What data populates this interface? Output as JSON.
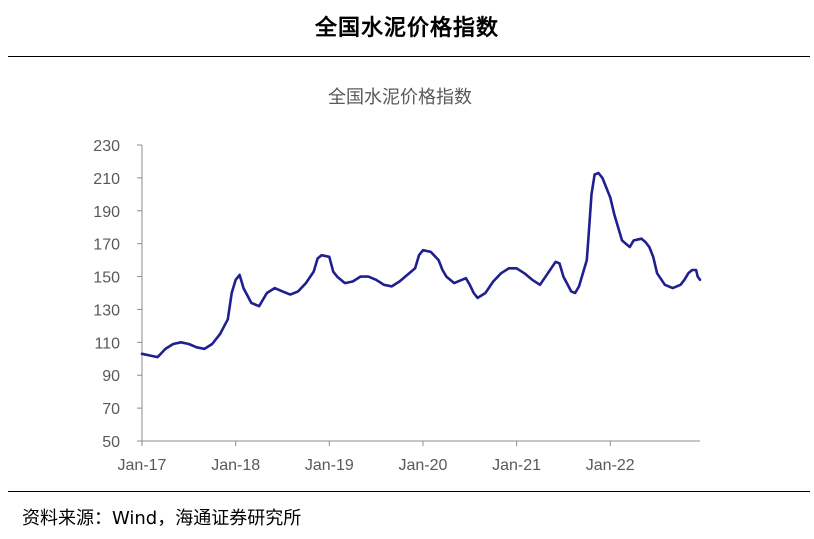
{
  "header": {
    "title": "全国水泥价格指数"
  },
  "footer": {
    "source": "资料来源：Wind，海通证券研究所"
  },
  "colors": {
    "series": "#1f1f8f",
    "axis": "#8c8c8c",
    "text": "#595959"
  },
  "chart_data": {
    "type": "line",
    "title": "全国水泥价格指数",
    "xlabel": "",
    "ylabel": "",
    "xlim": [
      0,
      71.5
    ],
    "ylim": [
      50,
      230
    ],
    "yticks": [
      50,
      70,
      90,
      110,
      130,
      150,
      170,
      190,
      210,
      230
    ],
    "xticks": [
      {
        "label": "Jan-17",
        "at": 0
      },
      {
        "label": "Jan-18",
        "at": 12
      },
      {
        "label": "Jan-19",
        "at": 24
      },
      {
        "label": "Jan-20",
        "at": 36
      },
      {
        "label": "Jan-21",
        "at": 48
      },
      {
        "label": "Jan-22",
        "at": 60
      }
    ],
    "grid": false,
    "legend": "none",
    "series": [
      {
        "values": [
          [
            0,
            103
          ],
          [
            1,
            102
          ],
          [
            2,
            101
          ],
          [
            3,
            106
          ],
          [
            4,
            109
          ],
          [
            5,
            110
          ],
          [
            6,
            109
          ],
          [
            7,
            107
          ],
          [
            8,
            106
          ],
          [
            9,
            109
          ],
          [
            10,
            115
          ],
          [
            11,
            124
          ],
          [
            11.5,
            140
          ],
          [
            12,
            148
          ],
          [
            12.5,
            151
          ],
          [
            13,
            143
          ],
          [
            14,
            134
          ],
          [
            15,
            132
          ],
          [
            16,
            140
          ],
          [
            17,
            143
          ],
          [
            18,
            141
          ],
          [
            19,
            139
          ],
          [
            20,
            141
          ],
          [
            21,
            146
          ],
          [
            22,
            153
          ],
          [
            22.5,
            161
          ],
          [
            23,
            163
          ],
          [
            24,
            162
          ],
          [
            24.5,
            153
          ],
          [
            25,
            150
          ],
          [
            26,
            146
          ],
          [
            27,
            147
          ],
          [
            28,
            150
          ],
          [
            29,
            150
          ],
          [
            30,
            148
          ],
          [
            31,
            145
          ],
          [
            32,
            144
          ],
          [
            33,
            147
          ],
          [
            34,
            151
          ],
          [
            35,
            155
          ],
          [
            35.5,
            163
          ],
          [
            36,
            166
          ],
          [
            37,
            165
          ],
          [
            38,
            160
          ],
          [
            38.5,
            154
          ],
          [
            39,
            150
          ],
          [
            40,
            146
          ],
          [
            41,
            148
          ],
          [
            41.5,
            149
          ],
          [
            42,
            145
          ],
          [
            42.5,
            140
          ],
          [
            43,
            137
          ],
          [
            44,
            140
          ],
          [
            45,
            147
          ],
          [
            46,
            152
          ],
          [
            47,
            155
          ],
          [
            48,
            155
          ],
          [
            49,
            152
          ],
          [
            50,
            148
          ],
          [
            51,
            145
          ],
          [
            52,
            152
          ],
          [
            53,
            159
          ],
          [
            53.5,
            158
          ],
          [
            54,
            150
          ],
          [
            55,
            141
          ],
          [
            55.5,
            140
          ],
          [
            56,
            144
          ],
          [
            56.5,
            152
          ],
          [
            57,
            160
          ],
          [
            57.3,
            180
          ],
          [
            57.6,
            200
          ],
          [
            58,
            212
          ],
          [
            58.5,
            213
          ],
          [
            59,
            210
          ],
          [
            60,
            198
          ],
          [
            60.5,
            188
          ],
          [
            61,
            180
          ],
          [
            61.5,
            172
          ],
          [
            62,
            170
          ],
          [
            62.5,
            168
          ],
          [
            63,
            172
          ],
          [
            64,
            173
          ],
          [
            64.5,
            171
          ],
          [
            65,
            168
          ],
          [
            65.5,
            162
          ],
          [
            66,
            152
          ],
          [
            67,
            145
          ],
          [
            68,
            143
          ],
          [
            69,
            145
          ],
          [
            69.5,
            148
          ],
          [
            70,
            152
          ],
          [
            70.5,
            154
          ],
          [
            71,
            154
          ],
          [
            71.2,
            150
          ],
          [
            71.5,
            148
          ]
        ]
      }
    ]
  }
}
